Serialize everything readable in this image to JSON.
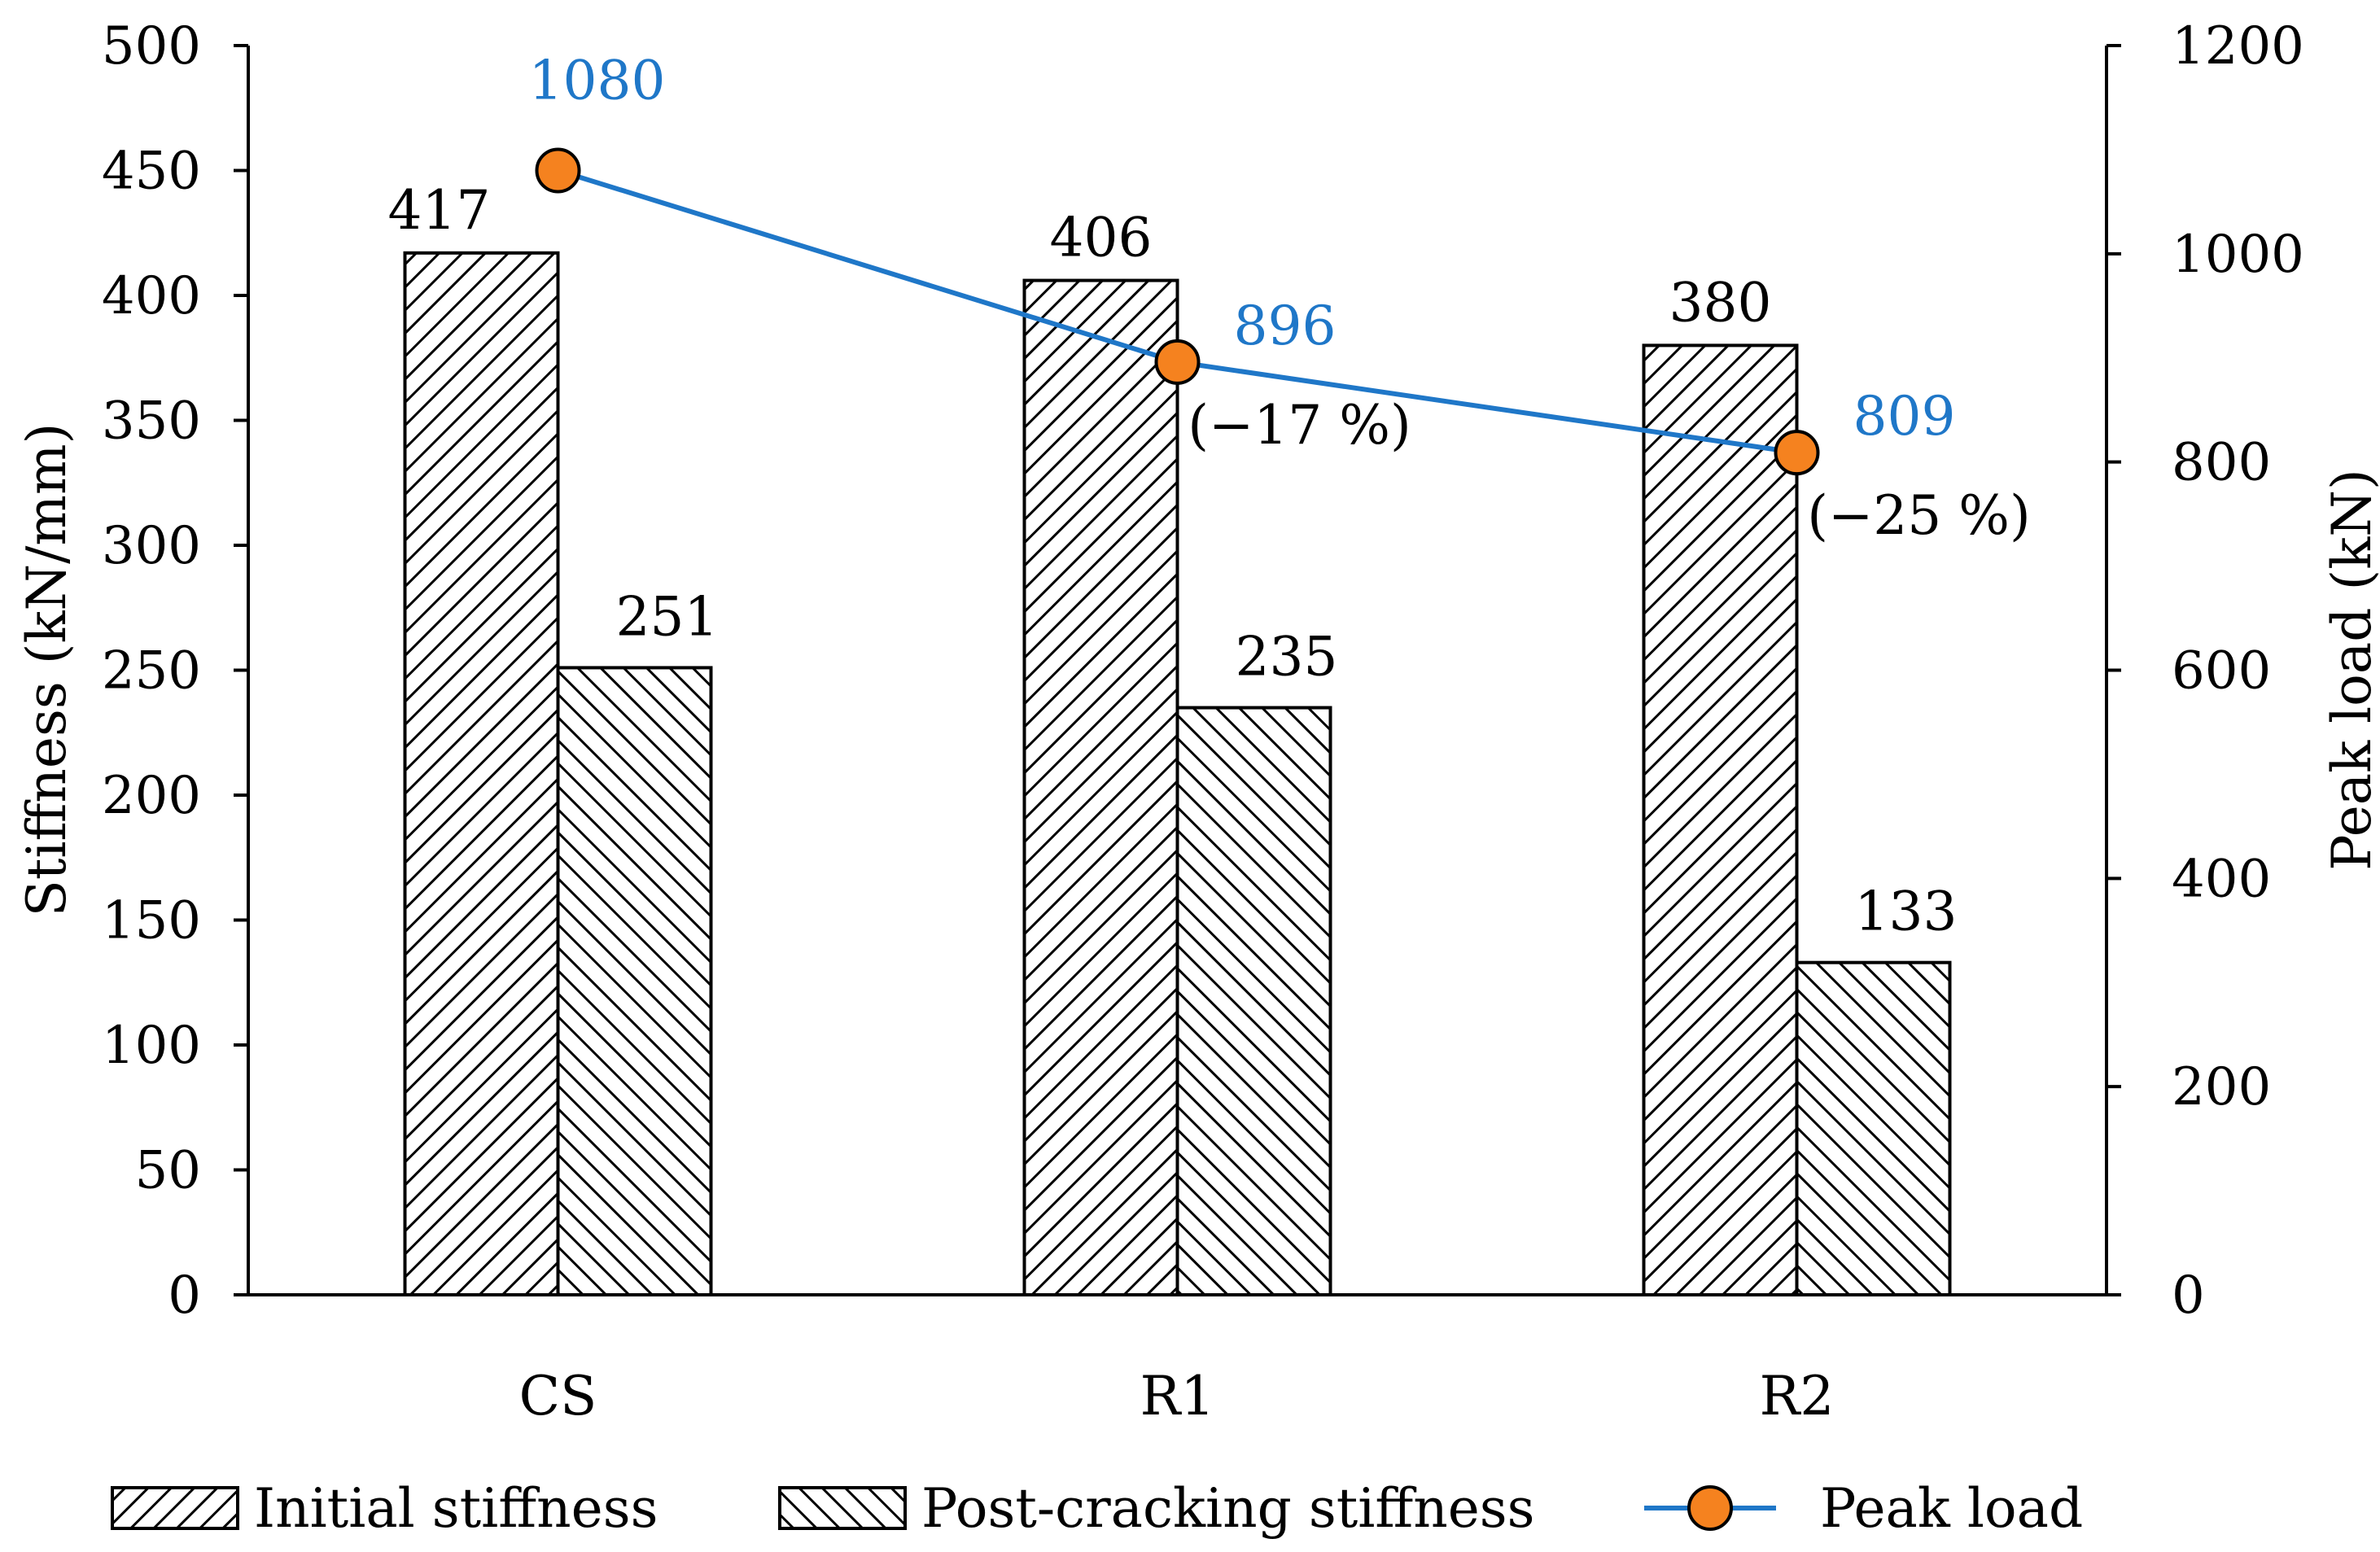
{
  "chart_data": {
    "type": "bar",
    "categories": [
      "CS",
      "R1",
      "R2"
    ],
    "series": [
      {
        "name": "Initial stiffness",
        "axis": "left",
        "pattern": "hatch-forward",
        "values": [
          417,
          406,
          380
        ]
      },
      {
        "name": "Post-cracking stiffness",
        "axis": "left",
        "pattern": "hatch-backward",
        "values": [
          251,
          235,
          133
        ]
      },
      {
        "name": "Peak load",
        "type": "line",
        "axis": "right",
        "values": [
          1080,
          896,
          809
        ],
        "line_color": "#1F77C8",
        "marker_color": "#F5821F"
      }
    ],
    "peak_labels": [
      "1080",
      "896",
      "809"
    ],
    "peak_change_labels": [
      "",
      "(−17 %)",
      "(−25 %)"
    ],
    "ylabel": "Stiffness (kN/mm)",
    "y2label": "Peak load (kN)",
    "ylim": [
      0,
      500
    ],
    "y2lim": [
      0,
      1200
    ],
    "yticks": [
      0,
      50,
      100,
      150,
      200,
      250,
      300,
      350,
      400,
      450,
      500
    ],
    "y2ticks": [
      0,
      200,
      400,
      600,
      800,
      1000,
      1200
    ],
    "legend": {
      "position": "bottom",
      "items": [
        "Initial stiffness",
        "Post-cracking stiffness",
        "Peak load"
      ]
    },
    "grid": false,
    "colors": {
      "bar_stroke": "#000000",
      "bar_fill": "#ffffff",
      "line": "#1F77C8",
      "marker": "#F5821F",
      "peak_label": "#1F77C8"
    }
  }
}
